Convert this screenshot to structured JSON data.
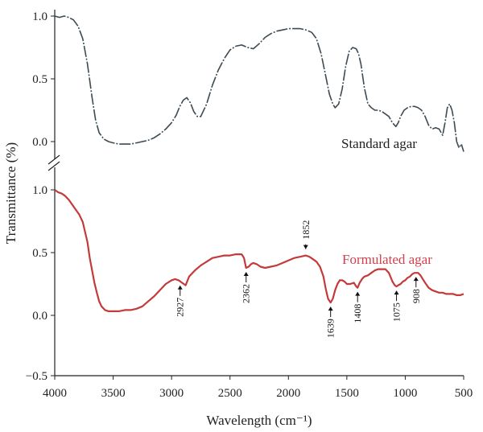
{
  "chart_data": {
    "type": "line",
    "xlabel": "Wavelength (cm⁻¹)",
    "ylabel": "Transmittance (%)",
    "xlim": [
      4000,
      500
    ],
    "x_reversed": true,
    "x_ticks": [
      "4000",
      "3500",
      "3000",
      "2500",
      "2000",
      "1500",
      "1000",
      "500"
    ],
    "axis_break": true,
    "panels": [
      {
        "name": "top",
        "ylim": [
          -0.1,
          1.05
        ],
        "y_ticks": [
          "1.0",
          "0.5",
          "0.0"
        ],
        "series": [
          {
            "name": "Standard agar",
            "color": "#3d4a52",
            "style": "dash-dot",
            "x": [
              4000,
              3960,
              3920,
              3880,
              3840,
              3800,
              3760,
              3720,
              3680,
              3650,
              3620,
              3580,
              3540,
              3500,
              3450,
              3400,
              3350,
              3300,
              3250,
              3200,
              3150,
              3100,
              3050,
              3000,
              2960,
              2930,
              2900,
              2870,
              2840,
              2810,
              2780,
              2750,
              2700,
              2650,
              2600,
              2550,
              2500,
              2450,
              2400,
              2350,
              2300,
              2250,
              2200,
              2150,
              2100,
              2050,
              2000,
              1950,
              1900,
              1850,
              1800,
              1760,
              1720,
              1680,
              1650,
              1620,
              1600,
              1570,
              1540,
              1510,
              1480,
              1450,
              1420,
              1400,
              1380,
              1350,
              1320,
              1290,
              1260,
              1230,
              1200,
              1170,
              1140,
              1110,
              1080,
              1060,
              1040,
              1010,
              980,
              950,
              920,
              890,
              860,
              830,
              800,
              770,
              740,
              710,
              680,
              660,
              640,
              620,
              600,
              580,
              560,
              540,
              520,
              500
            ],
            "y": [
              1.0,
              0.99,
              1.0,
              0.99,
              0.97,
              0.92,
              0.82,
              0.62,
              0.35,
              0.17,
              0.07,
              0.02,
              0.0,
              -0.01,
              -0.02,
              -0.02,
              -0.02,
              -0.01,
              0.0,
              0.01,
              0.03,
              0.06,
              0.1,
              0.15,
              0.21,
              0.28,
              0.33,
              0.35,
              0.31,
              0.24,
              0.2,
              0.2,
              0.3,
              0.45,
              0.57,
              0.66,
              0.73,
              0.76,
              0.77,
              0.75,
              0.74,
              0.78,
              0.83,
              0.86,
              0.88,
              0.89,
              0.9,
              0.9,
              0.9,
              0.89,
              0.87,
              0.82,
              0.7,
              0.52,
              0.38,
              0.3,
              0.27,
              0.3,
              0.42,
              0.6,
              0.72,
              0.75,
              0.74,
              0.7,
              0.62,
              0.43,
              0.3,
              0.27,
              0.25,
              0.25,
              0.24,
              0.22,
              0.2,
              0.15,
              0.12,
              0.15,
              0.2,
              0.25,
              0.27,
              0.28,
              0.28,
              0.27,
              0.25,
              0.2,
              0.13,
              0.1,
              0.11,
              0.1,
              0.05,
              0.15,
              0.27,
              0.3,
              0.25,
              0.15,
              0.0,
              -0.05,
              -0.02,
              -0.08
            ]
          }
        ]
      },
      {
        "name": "bottom",
        "ylim": [
          -0.5,
          1.05
        ],
        "y_ticks": [
          "1.0",
          "0.5",
          "0.0",
          "−0.5"
        ],
        "series": [
          {
            "name": "Formulated agar",
            "color": "#c43a3a",
            "style": "solid",
            "x": [
              4000,
              3970,
              3940,
              3910,
              3880,
              3850,
              3820,
              3790,
              3760,
              3740,
              3720,
              3700,
              3680,
              3660,
              3640,
              3620,
              3600,
              3570,
              3540,
              3500,
              3450,
              3400,
              3350,
              3300,
              3250,
              3200,
              3150,
              3100,
              3050,
              3000,
              2970,
              2940,
              2910,
              2880,
              2850,
              2800,
              2750,
              2700,
              2650,
              2600,
              2550,
              2500,
              2450,
              2400,
              2380,
              2362,
              2340,
              2320,
              2300,
              2270,
              2240,
              2200,
              2150,
              2100,
              2050,
              2000,
              1950,
              1900,
              1852,
              1820,
              1790,
              1760,
              1730,
              1700,
              1680,
              1660,
              1639,
              1620,
              1600,
              1580,
              1560,
              1540,
              1520,
              1500,
              1470,
              1440,
              1420,
              1408,
              1390,
              1370,
              1350,
              1320,
              1290,
              1260,
              1230,
              1200,
              1170,
              1140,
              1110,
              1090,
              1075,
              1060,
              1040,
              1020,
              1000,
              980,
              960,
              940,
              920,
              908,
              890,
              870,
              850,
              830,
              800,
              770,
              740,
              710,
              680,
              650,
              620,
              590,
              560,
              530,
              500
            ],
            "y": [
              1.0,
              0.98,
              0.97,
              0.95,
              0.92,
              0.88,
              0.84,
              0.8,
              0.74,
              0.66,
              0.58,
              0.45,
              0.35,
              0.25,
              0.17,
              0.1,
              0.06,
              0.03,
              0.02,
              0.02,
              0.02,
              0.03,
              0.03,
              0.04,
              0.06,
              0.1,
              0.14,
              0.19,
              0.24,
              0.27,
              0.28,
              0.27,
              0.25,
              0.23,
              0.3,
              0.35,
              0.39,
              0.42,
              0.45,
              0.46,
              0.47,
              0.47,
              0.48,
              0.48,
              0.45,
              0.37,
              0.38,
              0.4,
              0.41,
              0.4,
              0.38,
              0.37,
              0.38,
              0.39,
              0.41,
              0.43,
              0.45,
              0.46,
              0.47,
              0.46,
              0.44,
              0.42,
              0.38,
              0.3,
              0.2,
              0.12,
              0.09,
              0.12,
              0.19,
              0.24,
              0.27,
              0.27,
              0.26,
              0.24,
              0.24,
              0.25,
              0.22,
              0.21,
              0.25,
              0.28,
              0.3,
              0.31,
              0.33,
              0.35,
              0.36,
              0.36,
              0.36,
              0.33,
              0.26,
              0.23,
              0.22,
              0.23,
              0.24,
              0.26,
              0.27,
              0.29,
              0.3,
              0.32,
              0.33,
              0.33,
              0.33,
              0.31,
              0.28,
              0.25,
              0.21,
              0.19,
              0.18,
              0.17,
              0.17,
              0.16,
              0.16,
              0.16,
              0.15,
              0.15,
              0.16
            ]
          }
        ],
        "annotations": [
          {
            "text": "2927",
            "x": 2927
          },
          {
            "text": "2362",
            "x": 2362
          },
          {
            "text": "1852",
            "x": 1852
          },
          {
            "text": "1639",
            "x": 1639
          },
          {
            "text": "1408",
            "x": 1408
          },
          {
            "text": "1075",
            "x": 1075
          },
          {
            "text": "908",
            "x": 908
          }
        ]
      }
    ]
  }
}
